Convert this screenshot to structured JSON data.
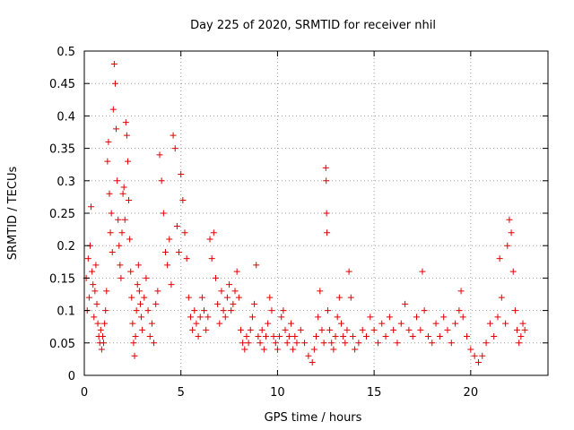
{
  "chart_data": {
    "type": "scatter",
    "title": "Day 225 of 2020, SRMTID for receiver nhil",
    "xlabel": "GPS time / hours",
    "ylabel": "SRMTID / TECUs",
    "xlim": [
      0,
      24
    ],
    "ylim": [
      0,
      0.5
    ],
    "xticks": [
      0,
      5,
      10,
      15,
      20
    ],
    "yticks": [
      0,
      0.05,
      0.1,
      0.15,
      0.2,
      0.25,
      0.3,
      0.35,
      0.4,
      0.45,
      0.5
    ],
    "xtick_labels": [
      "0",
      "5",
      "10",
      "15",
      "20"
    ],
    "ytick_labels": [
      "0",
      "0.05",
      "0.1",
      "0.15",
      "0.2",
      "0.25",
      "0.3",
      "0.35",
      "0.4",
      "0.45",
      "0.5"
    ],
    "grid": true,
    "marker": "+",
    "color": "#e00000",
    "series": [
      {
        "name": "SRMTID",
        "points": [
          [
            0.1,
            0.15
          ],
          [
            0.15,
            0.1
          ],
          [
            0.2,
            0.18
          ],
          [
            0.25,
            0.12
          ],
          [
            0.3,
            0.2
          ],
          [
            0.35,
            0.26
          ],
          [
            0.4,
            0.16
          ],
          [
            0.45,
            0.14
          ],
          [
            0.5,
            0.09
          ],
          [
            0.55,
            0.13
          ],
          [
            0.6,
            0.17
          ],
          [
            0.65,
            0.11
          ],
          [
            0.7,
            0.08
          ],
          [
            0.75,
            0.06
          ],
          [
            0.8,
            0.05
          ],
          [
            0.85,
            0.07
          ],
          [
            0.9,
            0.04
          ],
          [
            0.95,
            0.06
          ],
          [
            1.0,
            0.05
          ],
          [
            1.05,
            0.08
          ],
          [
            1.1,
            0.1
          ],
          [
            1.15,
            0.13
          ],
          [
            1.2,
            0.33
          ],
          [
            1.25,
            0.36
          ],
          [
            1.3,
            0.28
          ],
          [
            1.35,
            0.22
          ],
          [
            1.4,
            0.25
          ],
          [
            1.45,
            0.19
          ],
          [
            1.5,
            0.41
          ],
          [
            1.55,
            0.48
          ],
          [
            1.6,
            0.45
          ],
          [
            1.65,
            0.38
          ],
          [
            1.7,
            0.3
          ],
          [
            1.75,
            0.24
          ],
          [
            1.8,
            0.2
          ],
          [
            1.85,
            0.17
          ],
          [
            1.9,
            0.15
          ],
          [
            1.95,
            0.22
          ],
          [
            2.0,
            0.28
          ],
          [
            2.05,
            0.29
          ],
          [
            2.1,
            0.24
          ],
          [
            2.15,
            0.39
          ],
          [
            2.2,
            0.37
          ],
          [
            2.25,
            0.33
          ],
          [
            2.3,
            0.27
          ],
          [
            2.35,
            0.21
          ],
          [
            2.4,
            0.16
          ],
          [
            2.45,
            0.12
          ],
          [
            2.5,
            0.08
          ],
          [
            2.55,
            0.05
          ],
          [
            2.6,
            0.03
          ],
          [
            2.65,
            0.06
          ],
          [
            2.7,
            0.1
          ],
          [
            2.75,
            0.14
          ],
          [
            2.8,
            0.17
          ],
          [
            2.85,
            0.13
          ],
          [
            2.9,
            0.11
          ],
          [
            2.95,
            0.09
          ],
          [
            3.0,
            0.07
          ],
          [
            3.1,
            0.12
          ],
          [
            3.2,
            0.15
          ],
          [
            3.3,
            0.1
          ],
          [
            3.4,
            0.06
          ],
          [
            3.5,
            0.08
          ],
          [
            3.6,
            0.05
          ],
          [
            3.7,
            0.11
          ],
          [
            3.8,
            0.13
          ],
          [
            3.9,
            0.34
          ],
          [
            4.0,
            0.3
          ],
          [
            4.1,
            0.25
          ],
          [
            4.2,
            0.19
          ],
          [
            4.3,
            0.17
          ],
          [
            4.4,
            0.21
          ],
          [
            4.5,
            0.14
          ],
          [
            4.6,
            0.37
          ],
          [
            4.7,
            0.35
          ],
          [
            4.8,
            0.23
          ],
          [
            4.9,
            0.19
          ],
          [
            5.0,
            0.31
          ],
          [
            5.1,
            0.27
          ],
          [
            5.2,
            0.22
          ],
          [
            5.3,
            0.18
          ],
          [
            5.4,
            0.12
          ],
          [
            5.5,
            0.09
          ],
          [
            5.6,
            0.07
          ],
          [
            5.7,
            0.1
          ],
          [
            5.8,
            0.08
          ],
          [
            5.9,
            0.06
          ],
          [
            6.0,
            0.09
          ],
          [
            6.1,
            0.12
          ],
          [
            6.2,
            0.1
          ],
          [
            6.3,
            0.07
          ],
          [
            6.4,
            0.09
          ],
          [
            6.5,
            0.21
          ],
          [
            6.6,
            0.18
          ],
          [
            6.7,
            0.22
          ],
          [
            6.8,
            0.15
          ],
          [
            6.9,
            0.11
          ],
          [
            7.0,
            0.08
          ],
          [
            7.1,
            0.13
          ],
          [
            7.2,
            0.1
          ],
          [
            7.3,
            0.09
          ],
          [
            7.4,
            0.12
          ],
          [
            7.5,
            0.14
          ],
          [
            7.6,
            0.1
          ],
          [
            7.7,
            0.11
          ],
          [
            7.8,
            0.13
          ],
          [
            7.9,
            0.16
          ],
          [
            8.0,
            0.12
          ],
          [
            8.1,
            0.07
          ],
          [
            8.2,
            0.05
          ],
          [
            8.3,
            0.04
          ],
          [
            8.4,
            0.06
          ],
          [
            8.5,
            0.05
          ],
          [
            8.6,
            0.07
          ],
          [
            8.7,
            0.09
          ],
          [
            8.8,
            0.11
          ],
          [
            8.9,
            0.17
          ],
          [
            9.0,
            0.06
          ],
          [
            9.1,
            0.05
          ],
          [
            9.2,
            0.07
          ],
          [
            9.3,
            0.04
          ],
          [
            9.4,
            0.06
          ],
          [
            9.5,
            0.08
          ],
          [
            9.6,
            0.12
          ],
          [
            9.7,
            0.1
          ],
          [
            9.8,
            0.06
          ],
          [
            9.9,
            0.05
          ],
          [
            10.0,
            0.04
          ],
          [
            10.1,
            0.06
          ],
          [
            10.2,
            0.09
          ],
          [
            10.3,
            0.1
          ],
          [
            10.4,
            0.07
          ],
          [
            10.5,
            0.05
          ],
          [
            10.6,
            0.06
          ],
          [
            10.7,
            0.08
          ],
          [
            10.8,
            0.04
          ],
          [
            10.9,
            0.06
          ],
          [
            11.0,
            0.05
          ],
          [
            11.2,
            0.07
          ],
          [
            11.4,
            0.05
          ],
          [
            11.6,
            0.03
          ],
          [
            11.8,
            0.02
          ],
          [
            11.9,
            0.04
          ],
          [
            12.0,
            0.06
          ],
          [
            12.1,
            0.09
          ],
          [
            12.2,
            0.13
          ],
          [
            12.3,
            0.07
          ],
          [
            12.4,
            0.05
          ],
          [
            12.5,
            0.32
          ],
          [
            12.52,
            0.3
          ],
          [
            12.54,
            0.25
          ],
          [
            12.56,
            0.22
          ],
          [
            12.6,
            0.1
          ],
          [
            12.7,
            0.07
          ],
          [
            12.8,
            0.05
          ],
          [
            12.9,
            0.04
          ],
          [
            13.0,
            0.06
          ],
          [
            13.1,
            0.09
          ],
          [
            13.2,
            0.12
          ],
          [
            13.3,
            0.08
          ],
          [
            13.4,
            0.06
          ],
          [
            13.5,
            0.05
          ],
          [
            13.6,
            0.07
          ],
          [
            13.7,
            0.16
          ],
          [
            13.8,
            0.12
          ],
          [
            13.9,
            0.06
          ],
          [
            14.0,
            0.04
          ],
          [
            14.2,
            0.05
          ],
          [
            14.4,
            0.07
          ],
          [
            14.6,
            0.06
          ],
          [
            14.8,
            0.09
          ],
          [
            15.0,
            0.07
          ],
          [
            15.2,
            0.05
          ],
          [
            15.4,
            0.08
          ],
          [
            15.6,
            0.06
          ],
          [
            15.8,
            0.09
          ],
          [
            16.0,
            0.07
          ],
          [
            16.2,
            0.05
          ],
          [
            16.4,
            0.08
          ],
          [
            16.6,
            0.11
          ],
          [
            16.8,
            0.07
          ],
          [
            17.0,
            0.06
          ],
          [
            17.2,
            0.09
          ],
          [
            17.4,
            0.07
          ],
          [
            17.5,
            0.16
          ],
          [
            17.6,
            0.1
          ],
          [
            17.8,
            0.06
          ],
          [
            18.0,
            0.05
          ],
          [
            18.2,
            0.08
          ],
          [
            18.4,
            0.06
          ],
          [
            18.6,
            0.09
          ],
          [
            18.8,
            0.07
          ],
          [
            19.0,
            0.05
          ],
          [
            19.2,
            0.08
          ],
          [
            19.4,
            0.1
          ],
          [
            19.5,
            0.13
          ],
          [
            19.6,
            0.09
          ],
          [
            19.8,
            0.06
          ],
          [
            20.0,
            0.04
          ],
          [
            20.2,
            0.03
          ],
          [
            20.4,
            0.02
          ],
          [
            20.6,
            0.03
          ],
          [
            20.8,
            0.05
          ],
          [
            21.0,
            0.08
          ],
          [
            21.2,
            0.06
          ],
          [
            21.4,
            0.09
          ],
          [
            21.5,
            0.18
          ],
          [
            21.6,
            0.12
          ],
          [
            21.8,
            0.08
          ],
          [
            21.9,
            0.2
          ],
          [
            22.0,
            0.24
          ],
          [
            22.1,
            0.22
          ],
          [
            22.2,
            0.16
          ],
          [
            22.3,
            0.1
          ],
          [
            22.4,
            0.07
          ],
          [
            22.5,
            0.05
          ],
          [
            22.6,
            0.06
          ],
          [
            22.7,
            0.08
          ],
          [
            22.8,
            0.07
          ]
        ]
      }
    ]
  }
}
